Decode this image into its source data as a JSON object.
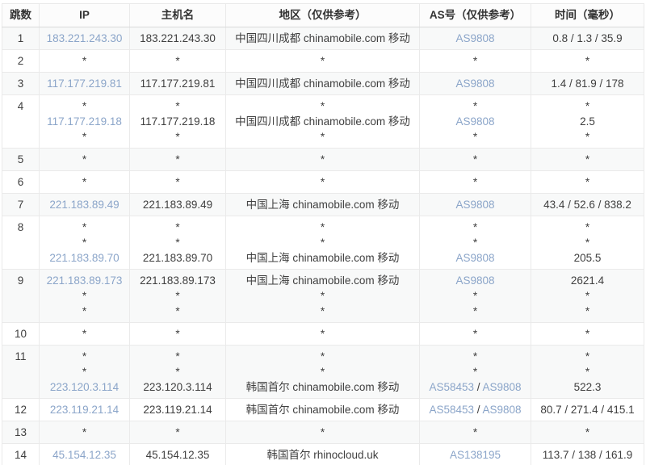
{
  "table": {
    "link_color": "#8ba5c9",
    "columns": [
      {
        "key": "hop",
        "label": "跳数"
      },
      {
        "key": "ip",
        "label": "IP"
      },
      {
        "key": "host",
        "label": "主机名"
      },
      {
        "key": "region",
        "label": "地区（仅供参考）"
      },
      {
        "key": "asn",
        "label": "AS号（仅供参考）"
      },
      {
        "key": "time",
        "label": "时间（毫秒）"
      }
    ],
    "rows": [
      {
        "hop": "1",
        "cells": {
          "ip": [
            [
              {
                "text": "183.221.243.30",
                "link": true
              }
            ]
          ],
          "host": [
            [
              "183.221.243.30"
            ]
          ],
          "region": [
            [
              "中国四川成都 chinamobile.com 移动"
            ]
          ],
          "asn": [
            [
              {
                "text": "AS9808",
                "link": true
              }
            ]
          ],
          "time": [
            [
              "0.8 / 1.3 / 35.9"
            ]
          ]
        }
      },
      {
        "hop": "2",
        "cells": {
          "ip": [
            [
              "*"
            ]
          ],
          "host": [
            [
              "*"
            ]
          ],
          "region": [
            [
              "*"
            ]
          ],
          "asn": [
            [
              "*"
            ]
          ],
          "time": [
            [
              "*"
            ]
          ]
        }
      },
      {
        "hop": "3",
        "cells": {
          "ip": [
            [
              {
                "text": "117.177.219.81",
                "link": true
              }
            ]
          ],
          "host": [
            [
              "117.177.219.81"
            ]
          ],
          "region": [
            [
              "中国四川成都 chinamobile.com 移动"
            ]
          ],
          "asn": [
            [
              {
                "text": "AS9808",
                "link": true
              }
            ]
          ],
          "time": [
            [
              "1.4 / 81.9 / 178"
            ]
          ]
        }
      },
      {
        "hop": "4",
        "cells": {
          "ip": [
            [
              "*"
            ],
            [
              {
                "text": "117.177.219.18",
                "link": true
              }
            ],
            [
              "*"
            ]
          ],
          "host": [
            [
              "*"
            ],
            [
              "117.177.219.18"
            ],
            [
              "*"
            ]
          ],
          "region": [
            [
              "*"
            ],
            [
              "中国四川成都 chinamobile.com 移动"
            ],
            [
              "*"
            ]
          ],
          "asn": [
            [
              "*"
            ],
            [
              {
                "text": "AS9808",
                "link": true
              }
            ],
            [
              "*"
            ]
          ],
          "time": [
            [
              "*"
            ],
            [
              "2.5"
            ],
            [
              "*"
            ]
          ]
        }
      },
      {
        "hop": "5",
        "cells": {
          "ip": [
            [
              "*"
            ]
          ],
          "host": [
            [
              "*"
            ]
          ],
          "region": [
            [
              "*"
            ]
          ],
          "asn": [
            [
              "*"
            ]
          ],
          "time": [
            [
              "*"
            ]
          ]
        }
      },
      {
        "hop": "6",
        "cells": {
          "ip": [
            [
              "*"
            ]
          ],
          "host": [
            [
              "*"
            ]
          ],
          "region": [
            [
              "*"
            ]
          ],
          "asn": [
            [
              "*"
            ]
          ],
          "time": [
            [
              "*"
            ]
          ]
        }
      },
      {
        "hop": "7",
        "cells": {
          "ip": [
            [
              {
                "text": "221.183.89.49",
                "link": true
              }
            ]
          ],
          "host": [
            [
              "221.183.89.49"
            ]
          ],
          "region": [
            [
              "中国上海 chinamobile.com 移动"
            ]
          ],
          "asn": [
            [
              {
                "text": "AS9808",
                "link": true
              }
            ]
          ],
          "time": [
            [
              "43.4 / 52.6 / 838.2"
            ]
          ]
        }
      },
      {
        "hop": "8",
        "cells": {
          "ip": [
            [
              "*"
            ],
            [
              "*"
            ],
            [
              {
                "text": "221.183.89.70",
                "link": true
              }
            ]
          ],
          "host": [
            [
              "*"
            ],
            [
              "*"
            ],
            [
              "221.183.89.70"
            ]
          ],
          "region": [
            [
              "*"
            ],
            [
              "*"
            ],
            [
              "中国上海 chinamobile.com 移动"
            ]
          ],
          "asn": [
            [
              "*"
            ],
            [
              "*"
            ],
            [
              {
                "text": "AS9808",
                "link": true
              }
            ]
          ],
          "time": [
            [
              "*"
            ],
            [
              "*"
            ],
            [
              "205.5"
            ]
          ]
        }
      },
      {
        "hop": "9",
        "cells": {
          "ip": [
            [
              {
                "text": "221.183.89.173",
                "link": true
              }
            ],
            [
              "*"
            ],
            [
              "*"
            ]
          ],
          "host": [
            [
              "221.183.89.173"
            ],
            [
              "*"
            ],
            [
              "*"
            ]
          ],
          "region": [
            [
              "中国上海 chinamobile.com 移动"
            ],
            [
              "*"
            ],
            [
              "*"
            ]
          ],
          "asn": [
            [
              {
                "text": "AS9808",
                "link": true
              }
            ],
            [
              "*"
            ],
            [
              "*"
            ]
          ],
          "time": [
            [
              "2621.4"
            ],
            [
              "*"
            ],
            [
              "*"
            ]
          ]
        }
      },
      {
        "hop": "10",
        "cells": {
          "ip": [
            [
              "*"
            ]
          ],
          "host": [
            [
              "*"
            ]
          ],
          "region": [
            [
              "*"
            ]
          ],
          "asn": [
            [
              "*"
            ]
          ],
          "time": [
            [
              "*"
            ]
          ]
        }
      },
      {
        "hop": "11",
        "cells": {
          "ip": [
            [
              "*"
            ],
            [
              "*"
            ],
            [
              {
                "text": "223.120.3.114",
                "link": true
              }
            ]
          ],
          "host": [
            [
              "*"
            ],
            [
              "*"
            ],
            [
              "223.120.3.114"
            ]
          ],
          "region": [
            [
              "*"
            ],
            [
              "*"
            ],
            [
              "韩国首尔 chinamobile.com 移动"
            ]
          ],
          "asn": [
            [
              "*"
            ],
            [
              "*"
            ],
            [
              {
                "text": "AS58453",
                "link": true
              },
              " / ",
              {
                "text": "AS9808",
                "link": true
              }
            ]
          ],
          "time": [
            [
              "*"
            ],
            [
              "*"
            ],
            [
              "522.3"
            ]
          ]
        }
      },
      {
        "hop": "12",
        "cells": {
          "ip": [
            [
              {
                "text": "223.119.21.14",
                "link": true
              }
            ]
          ],
          "host": [
            [
              "223.119.21.14"
            ]
          ],
          "region": [
            [
              "韩国首尔 chinamobile.com 移动"
            ]
          ],
          "asn": [
            [
              {
                "text": "AS58453",
                "link": true
              },
              " / ",
              {
                "text": "AS9808",
                "link": true
              }
            ]
          ],
          "time": [
            [
              "80.7 / 271.4 / 415.1"
            ]
          ]
        }
      },
      {
        "hop": "13",
        "cells": {
          "ip": [
            [
              "*"
            ]
          ],
          "host": [
            [
              "*"
            ]
          ],
          "region": [
            [
              "*"
            ]
          ],
          "asn": [
            [
              "*"
            ]
          ],
          "time": [
            [
              "*"
            ]
          ]
        }
      },
      {
        "hop": "14",
        "cells": {
          "ip": [
            [
              {
                "text": "45.154.12.35",
                "link": true
              }
            ]
          ],
          "host": [
            [
              "45.154.12.35"
            ]
          ],
          "region": [
            [
              "韩国首尔 rhinocloud.uk"
            ]
          ],
          "asn": [
            [
              {
                "text": "AS138195",
                "link": true
              }
            ]
          ],
          "time": [
            [
              "113.7 / 138 / 161.9"
            ]
          ]
        }
      }
    ]
  }
}
